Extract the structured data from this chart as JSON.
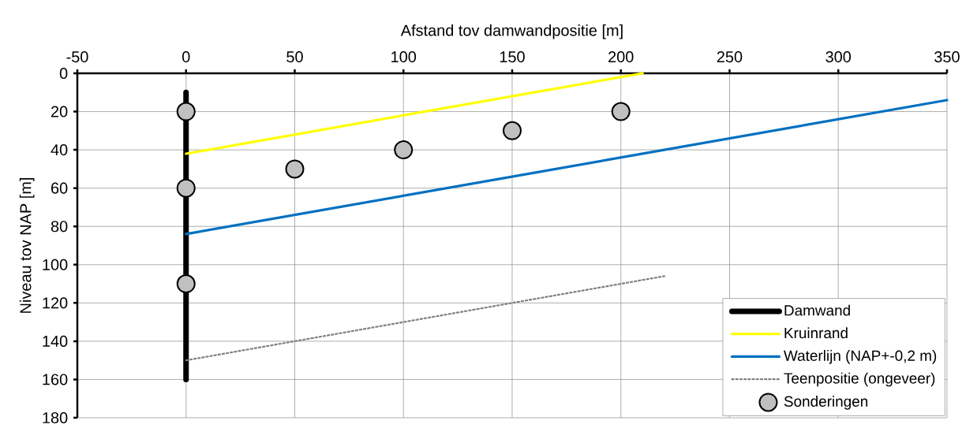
{
  "chart_data": {
    "type": "line",
    "xlabel": "Afstand tov damwandpositie [m]",
    "ylabel": "Niveau tov NAP [m]",
    "xlim": [
      -50,
      350
    ],
    "xticks": [
      -50,
      0,
      50,
      100,
      150,
      200,
      250,
      300,
      350
    ],
    "ylim": [
      180,
      0
    ],
    "yticks": [
      0,
      20,
      40,
      60,
      80,
      100,
      120,
      140,
      160,
      180
    ],
    "grid": true,
    "legend": "bottom right",
    "series": [
      {
        "name": "Damwand",
        "color": "#000000",
        "line_style": "solid",
        "x": [
          0,
          0
        ],
        "values": [
          10,
          160
        ]
      },
      {
        "name": "Kruinrand",
        "color": "#ffff00",
        "line_style": "solid",
        "x": [
          0,
          210
        ],
        "values": [
          42,
          0
        ]
      },
      {
        "name": "Waterlijn (NAP+-0,2 m)",
        "color": "#0070c0",
        "line_style": "solid",
        "x": [
          0,
          350
        ],
        "values": [
          84,
          14
        ]
      },
      {
        "name": "Teenpositie (ongeveer)",
        "color": "#808080",
        "line_style": "dotted",
        "x": [
          0,
          220
        ],
        "values": [
          150,
          106
        ]
      },
      {
        "name": "Sonderingen",
        "type": "scatter",
        "color": "#c0c0c0",
        "marker": "circle",
        "x": [
          0,
          0,
          0,
          50,
          100,
          150,
          200
        ],
        "values": [
          20,
          60,
          110,
          50,
          40,
          30,
          20
        ]
      }
    ]
  }
}
